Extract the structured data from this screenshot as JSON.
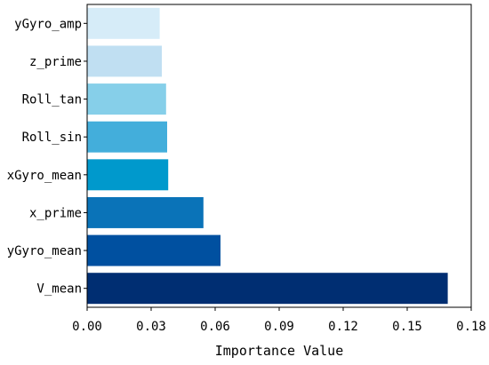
{
  "chart_data": {
    "type": "bar",
    "orientation": "horizontal",
    "categories": [
      "yGyro_amp",
      "z_prime",
      "Roll_tan",
      "Roll_sin",
      "xGyro_mean",
      "x_prime",
      "yGyro_mean",
      "V_mean"
    ],
    "values": [
      0.034,
      0.035,
      0.037,
      0.0375,
      0.038,
      0.0545,
      0.0625,
      0.169
    ],
    "colors": [
      "#d6ecf8",
      "#c0dff2",
      "#86cfe9",
      "#43aedb",
      "#0099cc",
      "#0a73b8",
      "#0050a0",
      "#002e72"
    ],
    "xlabel": "Importance Value",
    "ylabel": "",
    "title": "",
    "xlim": [
      0,
      0.18
    ],
    "xticks": [
      "0.00",
      "0.03",
      "0.06",
      "0.09",
      "0.12",
      "0.15",
      "0.18"
    ],
    "xtick_values": [
      0,
      0.03,
      0.06,
      0.09,
      0.12,
      0.15,
      0.18
    ],
    "grid": false,
    "legend": "none"
  }
}
